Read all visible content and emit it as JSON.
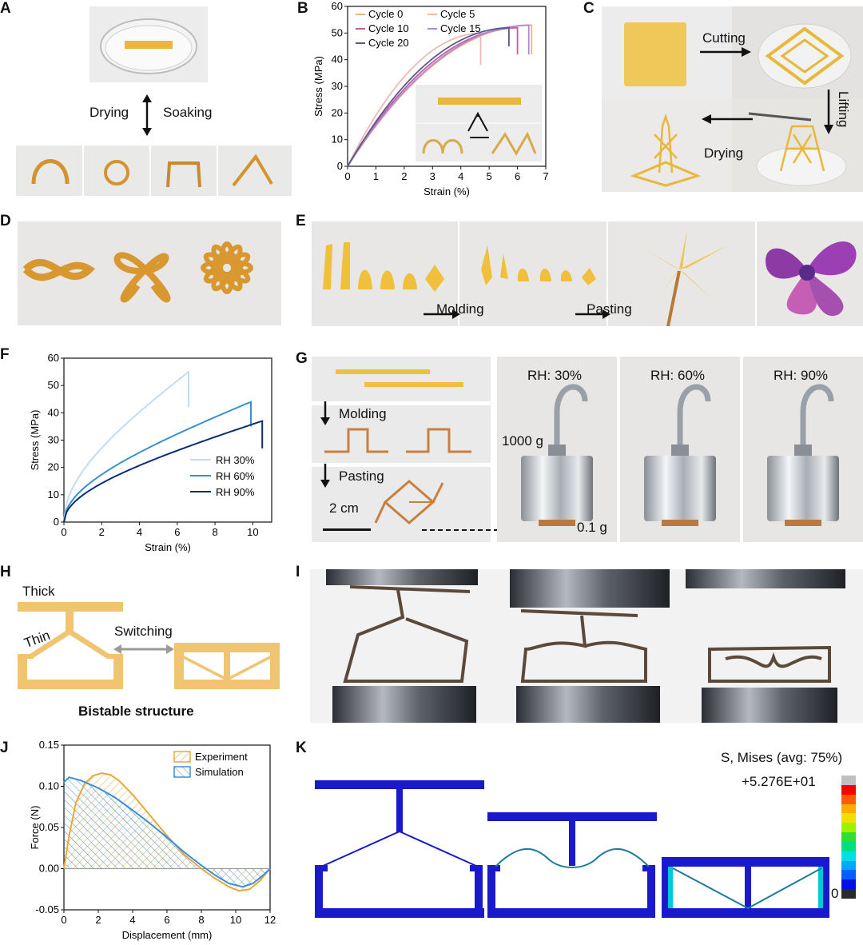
{
  "panels": {
    "A": "A",
    "B": "B",
    "C": "C",
    "D": "D",
    "E": "E",
    "F": "F",
    "G": "G",
    "H": "H",
    "I": "I",
    "J": "J",
    "K": "K"
  },
  "panelA": {
    "left_label": "Drying",
    "right_label": "Soaking"
  },
  "panelC": {
    "cutting": "Cutting",
    "lifting": "Lifting",
    "drying": "Drying"
  },
  "panelE": {
    "molding": "Molding",
    "pasting": "Pasting"
  },
  "panelG": {
    "molding": "Molding",
    "pasting": "Pasting",
    "scale": "2 cm",
    "weight": "1000 g",
    "mass": "0.1 g",
    "rh": [
      "RH: 30%",
      "RH: 60%",
      "RH: 90%"
    ]
  },
  "panelH": {
    "thick": "Thick",
    "thin": "Thin",
    "switching": "Switching",
    "caption": "Bistable structure"
  },
  "panelK": {
    "legend_title": "S, Mises (avg: 75%)",
    "max_label": "+5.276E+01",
    "min_label": "0",
    "colors": [
      "#c0c0c0",
      "#ff0000",
      "#ff5a00",
      "#ffaa00",
      "#f0e000",
      "#a0f000",
      "#30e030",
      "#00e080",
      "#00e0e0",
      "#00a8ff",
      "#0060ff",
      "#0010e0",
      "#2a2a2a"
    ]
  },
  "chart_data": [
    {
      "id": "B",
      "type": "line",
      "xlabel": "Strain (%)",
      "ylabel": "Stress (MPa)",
      "xlim": [
        0,
        7
      ],
      "ylim": [
        0,
        60
      ],
      "xticks": [
        "0",
        "1",
        "2",
        "3",
        "4",
        "5",
        "6",
        "7"
      ],
      "yticks": [
        "0",
        "10",
        "20",
        "30",
        "40",
        "50",
        "60"
      ],
      "legend": "top-left",
      "series": [
        {
          "name": "Cycle 0",
          "color": "#f5b27a",
          "peak_strain": 6.5,
          "peak_stress": 53,
          "drop_to": 42
        },
        {
          "name": "Cycle 5",
          "color": "#f2b8b0",
          "peak_strain": 4.7,
          "peak_stress": 50,
          "drop_to": 38
        },
        {
          "name": "Cycle 10",
          "color": "#c85aa0",
          "peak_strain": 6.0,
          "peak_stress": 52,
          "drop_to": 42
        },
        {
          "name": "Cycle 15",
          "color": "#b08ad8",
          "peak_strain": 6.4,
          "peak_stress": 53,
          "drop_to": 42
        },
        {
          "name": "Cycle 20",
          "color": "#5a5a8a",
          "peak_strain": 5.7,
          "peak_stress": 52,
          "drop_to": 45
        }
      ]
    },
    {
      "id": "F",
      "type": "line",
      "xlabel": "Strain (%)",
      "ylabel": "Stress (MPa)",
      "xlim": [
        0,
        11
      ],
      "ylim": [
        0,
        60
      ],
      "xticks": [
        "0",
        "2",
        "4",
        "6",
        "8",
        "10"
      ],
      "yticks": [
        "0",
        "10",
        "20",
        "30",
        "40",
        "50",
        "60"
      ],
      "legend": "bottom-right",
      "series": [
        {
          "name": "RH 30%",
          "color": "#c5dcf0",
          "peak_strain": 6.6,
          "peak_stress": 55,
          "drop_to": 42
        },
        {
          "name": "RH 60%",
          "color": "#3a92cc",
          "peak_strain": 9.9,
          "peak_stress": 44,
          "drop_to": 35
        },
        {
          "name": "RH 90%",
          "color": "#0b2f73",
          "peak_strain": 10.5,
          "peak_stress": 37,
          "drop_to": 27
        }
      ]
    },
    {
      "id": "J",
      "type": "area",
      "xlabel": "Displacement (mm)",
      "ylabel": "Force (N)",
      "xlim": [
        0,
        12
      ],
      "ylim": [
        -0.05,
        0.15
      ],
      "xticks": [
        "0",
        "2",
        "4",
        "6",
        "8",
        "10",
        "12"
      ],
      "yticks": [
        "-0.05",
        "0.00",
        "0.05",
        "0.10",
        "0.15"
      ],
      "legend": "top-right",
      "series": [
        {
          "name": "Experiment",
          "color": "#e8a93a",
          "x": [
            0,
            0.3,
            0.7,
            1.2,
            1.7,
            2.2,
            2.7,
            3.2,
            4,
            5,
            6,
            7,
            8,
            8.8,
            9.6,
            10.2,
            10.8,
            11.4,
            12
          ],
          "y": [
            0,
            0.04,
            0.08,
            0.103,
            0.113,
            0.116,
            0.114,
            0.107,
            0.09,
            0.065,
            0.04,
            0.017,
            0,
            -0.012,
            -0.022,
            -0.027,
            -0.025,
            -0.015,
            0
          ]
        },
        {
          "name": "Simulation",
          "color": "#3a8fd8",
          "x": [
            0,
            0.3,
            1,
            2,
            3,
            4,
            5,
            6,
            7,
            8,
            8.8,
            9.6,
            10.4,
            11,
            11.6,
            12
          ],
          "y": [
            0.105,
            0.111,
            0.107,
            0.098,
            0.086,
            0.071,
            0.055,
            0.038,
            0.02,
            0.004,
            -0.008,
            -0.018,
            -0.022,
            -0.018,
            -0.008,
            0
          ]
        }
      ]
    }
  ]
}
